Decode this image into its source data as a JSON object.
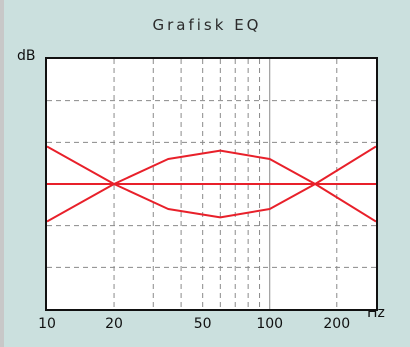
{
  "window": {
    "title": "Grafisk EQ"
  },
  "chart_data": {
    "type": "line",
    "title": "Grafisk EQ",
    "xlabel": "Hz",
    "ylabel": "dB",
    "x_scale": "log",
    "xlim": [
      10,
      300
    ],
    "ylim": [
      -6,
      6
    ],
    "grid": true,
    "x_tick_labels": [
      "10",
      "20",
      "50",
      "100",
      "200"
    ],
    "x_ticks": [
      10,
      20,
      50,
      100,
      200
    ],
    "series": [
      {
        "x": [
          10,
          20,
          50,
          100,
          160,
          300
        ],
        "y": [
          0,
          0,
          0,
          0,
          0,
          0
        ]
      },
      {
        "x": [
          10,
          20,
          35,
          60,
          100,
          160,
          300
        ],
        "y": [
          -1.8,
          0,
          1.2,
          1.6,
          1.2,
          0,
          1.8
        ]
      },
      {
        "x": [
          10,
          20,
          35,
          60,
          100,
          160,
          300
        ],
        "y": [
          1.8,
          0,
          -1.2,
          -1.6,
          -1.2,
          0,
          -1.8
        ]
      }
    ],
    "line_color": "#e8202a"
  }
}
